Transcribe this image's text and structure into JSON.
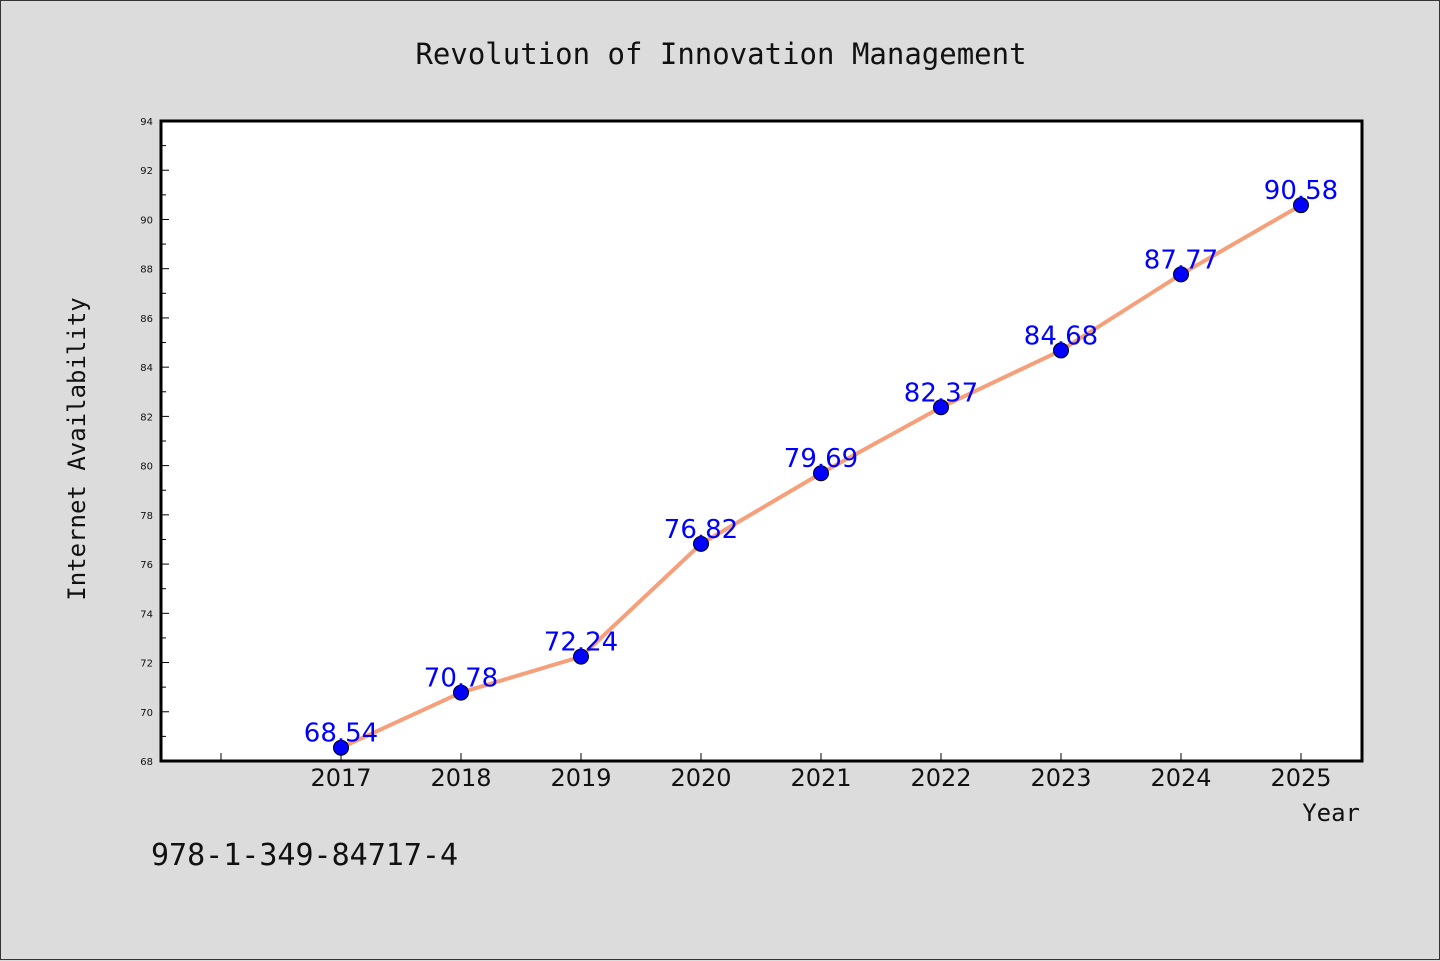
{
  "chart_data": {
    "type": "line",
    "title": "Revolution of Innovation Management",
    "xlabel": "Year",
    "ylabel": "Internet Availability",
    "categories": [
      "2017",
      "2018",
      "2019",
      "2020",
      "2021",
      "2022",
      "2023",
      "2024",
      "2025"
    ],
    "series": [
      {
        "values": [
          68.54,
          70.78,
          72.24,
          76.82,
          79.69,
          82.37,
          84.68,
          87.77,
          90.58
        ],
        "labels": [
          "68.54",
          "70.78",
          "72.24",
          "76.82",
          "79.69",
          "82.37",
          "84.68",
          "87.77",
          "90.58"
        ],
        "line_color": "#f5a07a",
        "marker_color": "#0000ff"
      }
    ],
    "ylim": [
      68,
      94
    ],
    "yticks": [
      "68",
      "70",
      "72",
      "74",
      "76",
      "78",
      "80",
      "82",
      "84",
      "86",
      "88",
      "90",
      "92",
      "94"
    ],
    "grid": false,
    "legend": "none"
  },
  "footnote": "978-1-349-84717-4",
  "colors": {
    "background": "#dcdcdc",
    "plot_background": "#ffffff",
    "data_label": "#0000ff"
  }
}
